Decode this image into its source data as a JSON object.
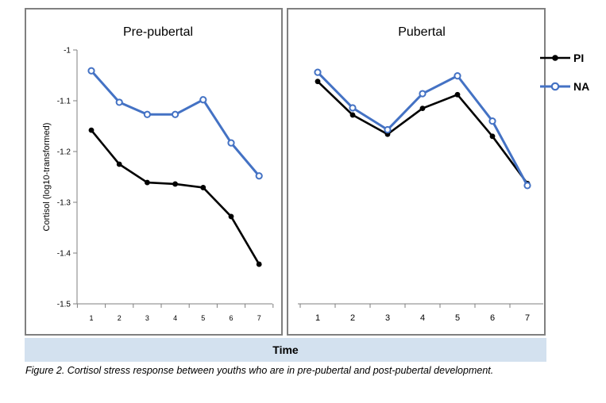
{
  "chart_data": {
    "type": "line",
    "ylabel": "Cortisol (log10-transformed)",
    "xlabel": "Time",
    "ylim": [
      -1.5,
      -1
    ],
    "yticks": [
      "-1",
      "-1.1",
      "-1.2",
      "-1.3",
      "-1.4",
      "-1.5"
    ],
    "legend_position": "top-right",
    "legend": [
      {
        "name": "PI",
        "color": "#000000"
      },
      {
        "name": "NA",
        "color": "#4472c4"
      }
    ],
    "panels": [
      {
        "title": "Pre-pubertal",
        "x": [
          "1",
          "2",
          "3",
          "4",
          "5",
          "6",
          "7"
        ],
        "series": [
          {
            "name": "PI",
            "color": "#000000",
            "values": [
              -1.158,
              -1.225,
              -1.261,
              -1.264,
              -1.271,
              -1.328,
              -1.422
            ]
          },
          {
            "name": "NA",
            "color": "#4472c4",
            "values": [
              -1.041,
              -1.103,
              -1.127,
              -1.127,
              -1.098,
              -1.183,
              -1.248
            ]
          }
        ]
      },
      {
        "title": "Pubertal",
        "x": [
          "1",
          "2",
          "3",
          "4",
          "5",
          "6",
          "7"
        ],
        "series": [
          {
            "name": "PI",
            "color": "#000000",
            "values": [
              -1.062,
              -1.128,
              -1.166,
              -1.115,
              -1.088,
              -1.17,
              -1.263
            ]
          },
          {
            "name": "NA",
            "color": "#4472c4",
            "values": [
              -1.044,
              -1.114,
              -1.157,
              -1.086,
              -1.051,
              -1.14,
              -1.267
            ]
          }
        ]
      }
    ]
  },
  "caption": "Figure 2. Cortisol stress response between youths who are in pre-pubertal and post-pubertal development."
}
